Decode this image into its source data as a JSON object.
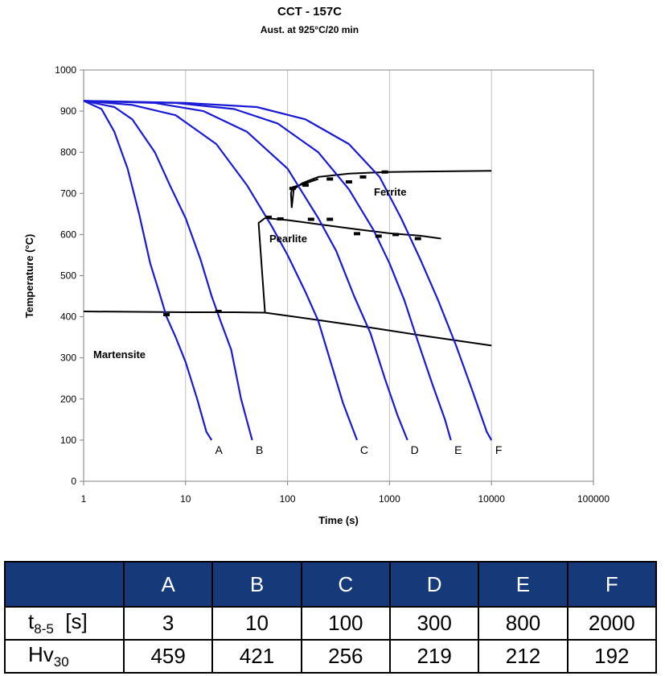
{
  "chart_data": {
    "type": "line",
    "title": "CCT - 157C",
    "subtitle": "Aust. at 925°C/20 min",
    "xlabel": "Time (s)",
    "ylabel": "Temperature (°C)",
    "xscale": "log",
    "xlim": [
      1,
      100000
    ],
    "ylim": [
      0,
      1000
    ],
    "xticks": [
      "1",
      "10",
      "100",
      "1000",
      "10000",
      "100000"
    ],
    "yticks": [
      "0",
      "100",
      "200",
      "300",
      "400",
      "500",
      "600",
      "700",
      "800",
      "900",
      "1000"
    ],
    "grid": "vertical",
    "colors": {
      "cooling": "#1a1ad6",
      "boundary": "#000000"
    },
    "regions": [
      "Ferrite",
      "Pearlite",
      "Martensite"
    ],
    "series": [
      {
        "name": "A",
        "x": [
          1,
          1.5,
          2,
          2.7,
          3.5,
          4.5,
          5.5,
          6.5,
          8,
          10,
          13,
          16,
          18
        ],
        "y": [
          925,
          905,
          850,
          760,
          650,
          530,
          460,
          400,
          350,
          290,
          200,
          120,
          100
        ]
      },
      {
        "name": "B",
        "x": [
          1,
          2,
          3,
          5,
          7,
          10,
          14,
          18,
          22,
          28,
          35,
          45
        ],
        "y": [
          925,
          910,
          880,
          800,
          720,
          640,
          540,
          450,
          390,
          320,
          200,
          100
        ]
      },
      {
        "name": "C",
        "x": [
          1,
          3,
          8,
          20,
          40,
          70,
          100,
          150,
          200,
          280,
          350,
          480
        ],
        "y": [
          925,
          915,
          890,
          820,
          720,
          620,
          550,
          460,
          390,
          270,
          190,
          100
        ]
      },
      {
        "name": "D",
        "x": [
          1,
          5,
          15,
          40,
          100,
          200,
          300,
          450,
          650,
          900,
          1200,
          1500
        ],
        "y": [
          925,
          920,
          900,
          850,
          760,
          640,
          560,
          450,
          360,
          250,
          160,
          100
        ]
      },
      {
        "name": "E",
        "x": [
          1,
          8,
          30,
          80,
          200,
          400,
          700,
          1000,
          1400,
          1900,
          2600,
          3500,
          4000
        ],
        "y": [
          925,
          920,
          905,
          870,
          800,
          710,
          610,
          530,
          440,
          340,
          240,
          150,
          100
        ]
      },
      {
        "name": "F",
        "x": [
          1,
          10,
          50,
          150,
          400,
          800,
          1300,
          2000,
          3000,
          4500,
          6500,
          9000,
          10000
        ],
        "y": [
          925,
          920,
          910,
          880,
          820,
          740,
          640,
          540,
          440,
          330,
          220,
          120,
          100
        ]
      }
    ],
    "boundaries": [
      {
        "x": [
          110,
          115,
          140,
          200,
          400,
          600,
          1000,
          10000
        ],
        "y": [
          665,
          710,
          725,
          740,
          748,
          750,
          752,
          755
        ]
      },
      {
        "x": [
          110,
          108,
          112,
          140,
          200
        ],
        "y": [
          665,
          700,
          715,
          722,
          735
        ]
      },
      {
        "x": [
          60,
          100,
          200,
          500,
          1000,
          2000,
          3200
        ],
        "y": [
          640,
          635,
          625,
          612,
          603,
          597,
          590
        ]
      },
      {
        "x": [
          60,
          52,
          53,
          60
        ],
        "y": [
          640,
          628,
          600,
          412
        ]
      },
      {
        "x": [
          1,
          10,
          30,
          60
        ],
        "y": [
          413,
          411,
          411,
          410
        ]
      },
      {
        "x": [
          60,
          200,
          600,
          2000,
          10000
        ],
        "y": [
          410,
          392,
          375,
          355,
          330
        ]
      }
    ]
  },
  "table": {
    "headers": [
      "A",
      "B",
      "C",
      "D",
      "E",
      "F"
    ],
    "rows": [
      {
        "label": "t",
        "sub": "8-5",
        "suffix": "  [s]",
        "values": [
          "3",
          "10",
          "100",
          "300",
          "800",
          "2000"
        ]
      },
      {
        "label": "Hv",
        "sub": "30",
        "suffix": "",
        "values": [
          "459",
          "421",
          "256",
          "219",
          "212",
          "192"
        ]
      }
    ]
  }
}
